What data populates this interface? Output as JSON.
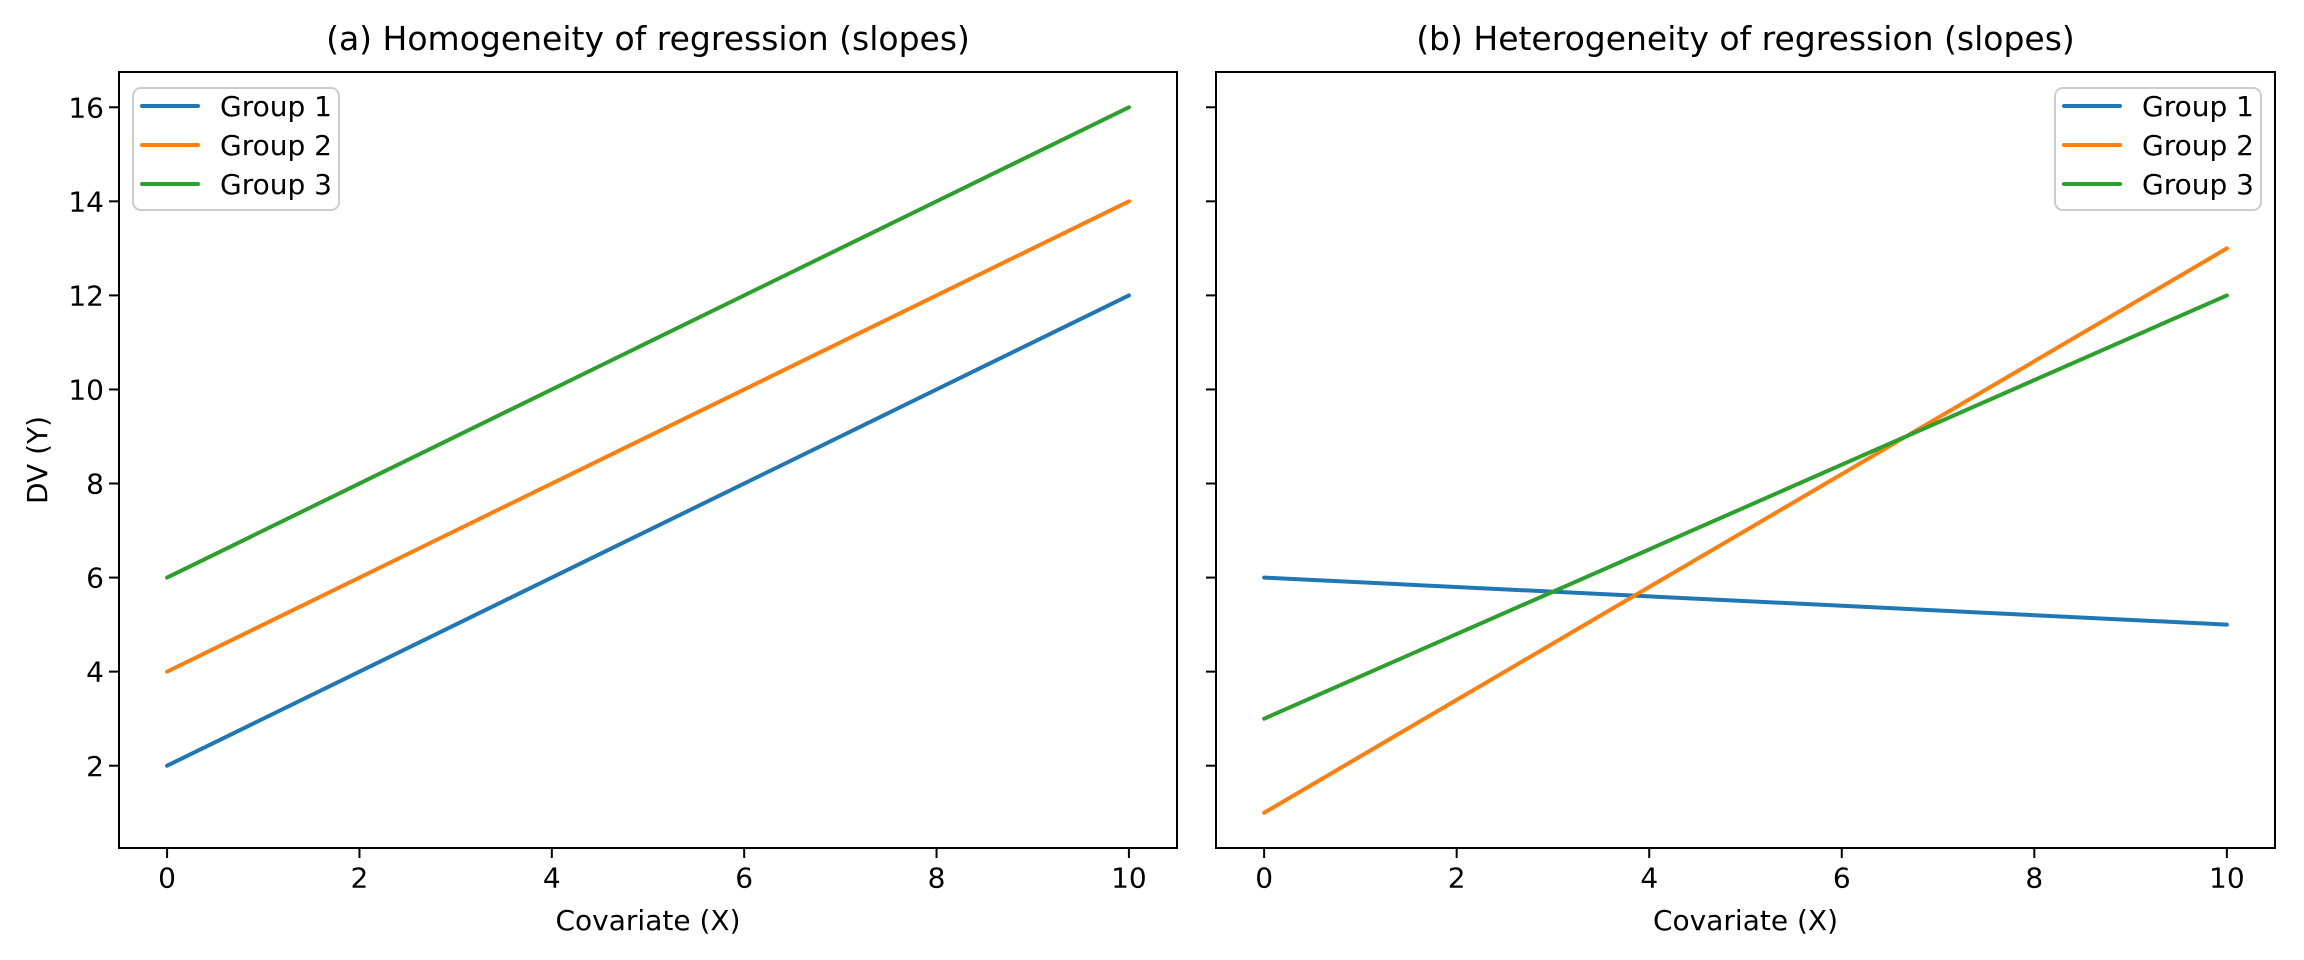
{
  "figure": {
    "background": "#ffffff",
    "spine_color": "#000000",
    "text_color": "#000000",
    "legend_border_color": "#cccccc",
    "legend_background": "#ffffff"
  },
  "chart_data": [
    {
      "type": "line",
      "panel": "a",
      "title": "(a) Homogeneity of regression (slopes)",
      "xlabel": "Covariate (X)",
      "ylabel": "DV (Y)",
      "xlim": [
        -0.5,
        10.5
      ],
      "ylim": [
        0.25,
        16.75
      ],
      "xticks": [
        0,
        2,
        4,
        6,
        8,
        10
      ],
      "yticks": [
        2,
        4,
        6,
        8,
        10,
        12,
        14,
        16
      ],
      "show_ytick_labels": true,
      "grid": false,
      "legend": {
        "position": "upper left",
        "entries": [
          "Group 1",
          "Group 2",
          "Group 3"
        ]
      },
      "series": [
        {
          "name": "Group 1",
          "color": "#1f77b4",
          "x": [
            0,
            10
          ],
          "y": [
            2,
            12
          ]
        },
        {
          "name": "Group 2",
          "color": "#ff7f0e",
          "x": [
            0,
            10
          ],
          "y": [
            4,
            14
          ]
        },
        {
          "name": "Group 3",
          "color": "#2ca02c",
          "x": [
            0,
            10
          ],
          "y": [
            6,
            16
          ]
        }
      ]
    },
    {
      "type": "line",
      "panel": "b",
      "title": "(b) Heterogeneity of regression (slopes)",
      "xlabel": "Covariate (X)",
      "ylabel": "",
      "xlim": [
        -0.5,
        10.5
      ],
      "ylim": [
        0.25,
        16.75
      ],
      "xticks": [
        0,
        2,
        4,
        6,
        8,
        10
      ],
      "yticks": [
        2,
        4,
        6,
        8,
        10,
        12,
        14,
        16
      ],
      "show_ytick_labels": false,
      "grid": false,
      "legend": {
        "position": "upper right",
        "entries": [
          "Group 1",
          "Group 2",
          "Group 3"
        ]
      },
      "series": [
        {
          "name": "Group 1",
          "color": "#1f77b4",
          "x": [
            0,
            10
          ],
          "y": [
            6,
            5
          ]
        },
        {
          "name": "Group 2",
          "color": "#ff7f0e",
          "x": [
            0,
            10
          ],
          "y": [
            1,
            13
          ]
        },
        {
          "name": "Group 3",
          "color": "#2ca02c",
          "x": [
            0,
            10
          ],
          "y": [
            3,
            12
          ]
        }
      ]
    }
  ]
}
